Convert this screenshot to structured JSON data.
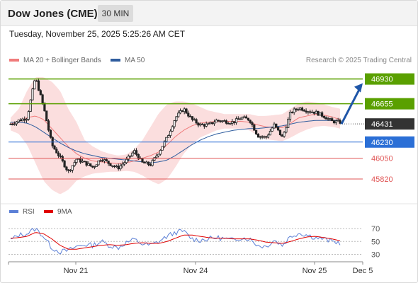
{
  "header": {
    "title": "Dow Jones (CME)",
    "timeframe": "30 MIN"
  },
  "timestamp": "Tuesday, November 25, 2025 5:25:26 AM CET",
  "legend": {
    "bb_label": "MA 20 + Bollinger Bands",
    "ma50_label": "MA 50",
    "bb_color": "#f07b7b",
    "ma50_color": "#2f5d9e"
  },
  "credit": "Research © 2025 Trading Central",
  "rsi_legend": {
    "rsi_label": "RSI",
    "ma_label": "9MA",
    "rsi_color": "#5b7fd6",
    "ma_color": "#e00000"
  },
  "colors": {
    "green_level": "#5aa000",
    "blue_level": "#2b6fd6",
    "red_level": "#e05555",
    "current": "#333333",
    "arrow": "#1f56a8",
    "candle": "#222222"
  },
  "chart_data": {
    "type": "candlestick",
    "ylim": [
      45600,
      47100
    ],
    "x_ticks": [
      "Nov 21",
      "Nov 24",
      "Nov 25",
      "Dec 5"
    ],
    "levels": [
      {
        "value": 46930,
        "label": "46930",
        "kind": "resistance",
        "style": "box",
        "color": "#5aa000"
      },
      {
        "value": 46655,
        "label": "46655",
        "kind": "resistance",
        "style": "box",
        "color": "#5aa000"
      },
      {
        "value": 46431,
        "label": "46431",
        "kind": "current",
        "style": "box",
        "color": "#333333"
      },
      {
        "value": 46230,
        "label": "46230",
        "kind": "support",
        "style": "box",
        "color": "#2b6fd6"
      },
      {
        "value": 46050,
        "label": "46050",
        "kind": "support",
        "style": "text",
        "color": "#e05555"
      },
      {
        "value": 45820,
        "label": "45820",
        "kind": "support",
        "style": "text",
        "color": "#e05555"
      }
    ],
    "forecast_arrow": {
      "from": 46431,
      "to": 46930,
      "direction": "up"
    },
    "price_anchors": [
      46430,
      46470,
      46500,
      46950,
      46620,
      46200,
      46060,
      45900,
      46040,
      46000,
      45950,
      46050,
      45990,
      45940,
      46020,
      46130,
      46000,
      45980,
      46120,
      46280,
      46500,
      46600,
      46480,
      46420,
      46420,
      46470,
      46460,
      46450,
      46500,
      46480,
      46300,
      46280,
      46420,
      46280,
      46560,
      46610,
      46580,
      46560,
      46520,
      46460,
      46450
    ],
    "ma20": [
      46430,
      46460,
      46500,
      46520,
      46480,
      46380,
      46280,
      46180,
      46100,
      46050,
      46020,
      46010,
      46000,
      45990,
      46000,
      46020,
      46050,
      46080,
      46120,
      46200,
      46290,
      46360,
      46410,
      46440,
      46450,
      46460,
      46460,
      46460,
      46460,
      46450,
      46420,
      46400,
      46390,
      46390,
      46440,
      46500,
      46520,
      46540,
      46530,
      46510,
      46480
    ],
    "bb_upper": [
      46500,
      46600,
      46800,
      46950,
      46950,
      46900,
      46800,
      46600,
      46450,
      46250,
      46180,
      46130,
      46100,
      46080,
      46090,
      46150,
      46250,
      46400,
      46550,
      46650,
      46680,
      46680,
      46660,
      46620,
      46580,
      46560,
      46540,
      46540,
      46540,
      46540,
      46520,
      46520,
      46530,
      46540,
      46600,
      46660,
      46680,
      46670,
      46650,
      46620,
      46600
    ],
    "bb_lower": [
      46360,
      46320,
      46200,
      46000,
      45800,
      45700,
      45650,
      45700,
      45800,
      45850,
      45880,
      45890,
      45900,
      45900,
      45910,
      45900,
      45860,
      45800,
      45760,
      45820,
      45950,
      46100,
      46200,
      46280,
      46320,
      46360,
      46380,
      46380,
      46380,
      46360,
      46300,
      46260,
      46250,
      46240,
      46280,
      46330,
      46370,
      46400,
      46410,
      46400,
      46380
    ],
    "ma50": [
      46450,
      46450,
      46440,
      46400,
      46340,
      46280,
      46220,
      46170,
      46130,
      46100,
      46080,
      46060,
      46050,
      46040,
      46030,
      46020,
      46010,
      46000,
      46010,
      46030,
      46080,
      46140,
      46200,
      46250,
      46290,
      46320,
      46340,
      46360,
      46370,
      46380,
      46380,
      46390,
      46400,
      46410,
      46430,
      46450,
      46460,
      46470,
      46470,
      46470,
      46470
    ],
    "rsi": {
      "ticks": [
        70,
        50,
        30
      ],
      "ylim": [
        25,
        80
      ],
      "rsi_anchors": [
        52,
        60,
        62,
        70,
        58,
        40,
        34,
        36,
        42,
        45,
        44,
        50,
        44,
        40,
        48,
        53,
        46,
        44,
        50,
        58,
        64,
        66,
        54,
        52,
        54,
        56,
        54,
        52,
        56,
        54,
        44,
        42,
        52,
        44,
        58,
        63,
        60,
        56,
        54,
        50,
        48
      ],
      "ma_anchors": [
        55,
        56,
        58,
        64,
        62,
        54,
        44,
        38,
        38,
        40,
        42,
        44,
        45,
        44,
        45,
        47,
        48,
        47,
        47,
        50,
        55,
        60,
        60,
        58,
        56,
        55,
        55,
        54,
        54,
        54,
        52,
        49,
        48,
        47,
        50,
        54,
        57,
        58,
        56,
        54,
        51
      ]
    }
  }
}
